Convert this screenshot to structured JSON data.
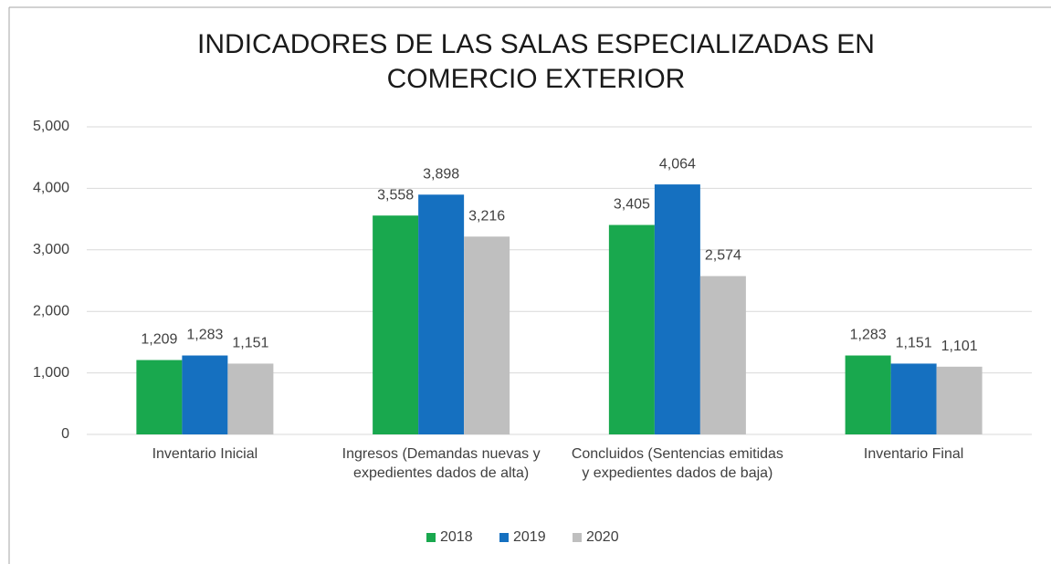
{
  "chart_data": {
    "type": "bar",
    "title": "INDICADORES DE LAS SALAS ESPECIALIZADAS EN COMERCIO EXTERIOR",
    "categories": [
      "Inventario Inicial",
      "Ingresos (Demandas nuevas y expedientes dados de alta)",
      "Concluidos (Sentencias emitidas y expedientes dados de baja)",
      "Inventario Final"
    ],
    "series": [
      {
        "name": "2018",
        "color": "#19a84e",
        "values": [
          1209,
          3558,
          3405,
          1283
        ],
        "value_labels": [
          "1,209",
          "3,558",
          "3,405",
          "1,283"
        ]
      },
      {
        "name": "2019",
        "color": "#1570c0",
        "values": [
          1283,
          3898,
          4064,
          1151
        ],
        "value_labels": [
          "1,283",
          "3,898",
          "4,064",
          "1,151"
        ]
      },
      {
        "name": "2020",
        "color": "#bfbfbf",
        "values": [
          1151,
          3216,
          2574,
          1101
        ],
        "value_labels": [
          "1,151",
          "3,216",
          "2,574",
          "1,101"
        ]
      }
    ],
    "ylim": [
      0,
      5000
    ],
    "yticks": [
      0,
      {
        "value": 1000,
        "label": "1,000"
      },
      {
        "value": 2000,
        "label": "2,000"
      },
      {
        "value": 3000,
        "label": "3,000"
      },
      {
        "value": 4000,
        "label": "4,000"
      },
      {
        "value": 5000,
        "label": "5,000"
      }
    ],
    "grid": true,
    "legend": "bottom"
  }
}
